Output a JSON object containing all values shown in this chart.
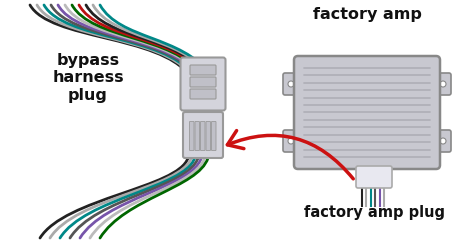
{
  "bg_color": "#ffffff",
  "wire_colors_top": [
    "#222222",
    "#aaaaaa",
    "#008888",
    "#555555",
    "#7755aa",
    "#bbbbbb",
    "#006600",
    "#bb1111",
    "#222222",
    "#aaaaaa",
    "#008888"
  ],
  "wire_colors_bottom": [
    "#222222",
    "#aaaaaa",
    "#008888",
    "#555555",
    "#7755aa",
    "#bbbbbb",
    "#006600"
  ],
  "plug_color": "#d4d4dc",
  "plug_outline": "#999999",
  "amp_color": "#c8c8d0",
  "amp_stripe_color": "#b8b8c0",
  "amp_outline": "#888888",
  "amp_fin_color": "#b0b0b8",
  "arrow_color": "#cc1111",
  "text_color": "#111111",
  "label_bypass": "bypass\nharness\nplug",
  "label_factory_amp": "factory amp",
  "label_factory_amp_plug": "factory amp plug",
  "font_size_main": 11.5,
  "font_size_sub": 10.5
}
